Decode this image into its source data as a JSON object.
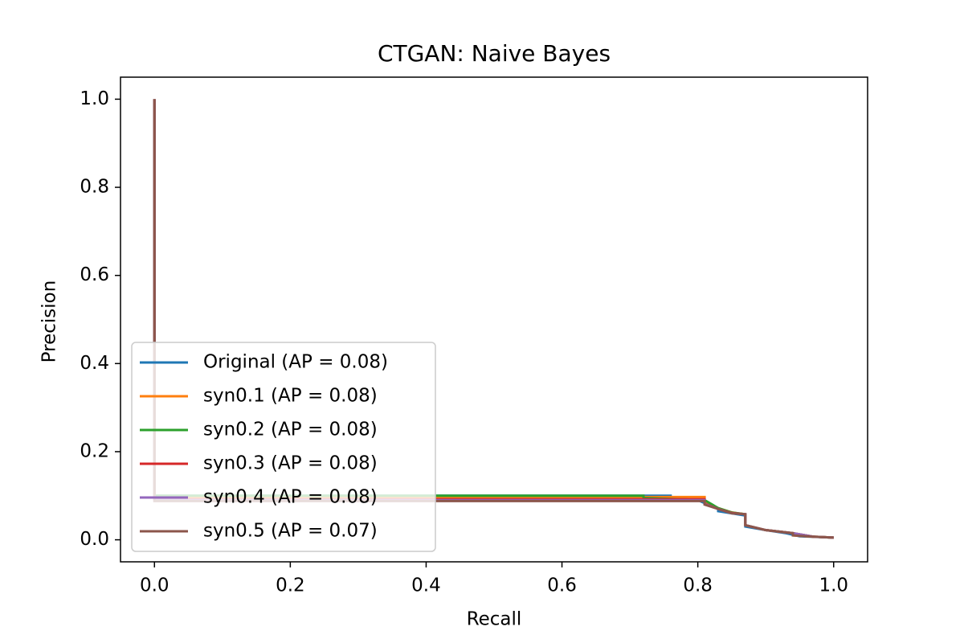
{
  "chart_data": {
    "type": "line",
    "title": "CTGAN: Naive Bayes",
    "xlabel": "Recall",
    "ylabel": "Precision",
    "xlim": [
      -0.05,
      1.05
    ],
    "ylim": [
      -0.05,
      1.05
    ],
    "xticks": [
      {
        "value": 0,
        "label": "0.0"
      },
      0.2,
      0.4,
      0.6,
      0.8,
      {
        "value": 1,
        "label": "1.0"
      }
    ],
    "yticks": [
      {
        "value": 0,
        "label": "0.0"
      },
      0.2,
      0.4,
      0.6,
      0.8,
      {
        "value": 1,
        "label": "1.0"
      }
    ],
    "legend": "lower left",
    "grid": false,
    "series": [
      {
        "name": "Original (AP = 0.08)",
        "color": "#1f77b4",
        "x": [
          0,
          0,
          0.76,
          0.76,
          0.8,
          0.83,
          0.83,
          0.87,
          0.87,
          0.9,
          0.93,
          0.95,
          1.0
        ],
        "values": [
          1,
          0.1,
          0.1,
          0.095,
          0.09,
          0.07,
          0.065,
          0.055,
          0.03,
          0.022,
          0.015,
          0.008,
          0.005
        ]
      },
      {
        "name": "syn0.1 (AP = 0.08)",
        "color": "#ff7f0e",
        "x": [
          0,
          0,
          0.81,
          0.81,
          0.83,
          0.85,
          0.87,
          0.87,
          0.9,
          0.94,
          0.94,
          0.97,
          1.0
        ],
        "values": [
          1,
          0.097,
          0.097,
          0.085,
          0.072,
          0.062,
          0.058,
          0.033,
          0.022,
          0.015,
          0.01,
          0.007,
          0.005
        ]
      },
      {
        "name": "syn0.2 (AP = 0.08)",
        "color": "#2ca02c",
        "x": [
          0,
          0,
          0.72,
          0.72,
          0.81,
          0.83,
          0.85,
          0.87,
          0.87,
          0.9,
          0.94,
          0.97,
          1.0
        ],
        "values": [
          1,
          0.1,
          0.1,
          0.095,
          0.09,
          0.072,
          0.062,
          0.058,
          0.033,
          0.022,
          0.015,
          0.007,
          0.005
        ]
      },
      {
        "name": "syn0.3 (AP = 0.08)",
        "color": "#d62728",
        "x": [
          0,
          0,
          0.81,
          0.81,
          0.83,
          0.85,
          0.87,
          0.87,
          0.9,
          0.94,
          0.97,
          1.0
        ],
        "values": [
          1,
          0.092,
          0.092,
          0.082,
          0.07,
          0.061,
          0.058,
          0.033,
          0.022,
          0.015,
          0.007,
          0.005
        ]
      },
      {
        "name": "syn0.4 (AP = 0.08)",
        "color": "#9467bd",
        "x": [
          0,
          0,
          0.81,
          0.81,
          0.83,
          0.85,
          0.87,
          0.87,
          0.9,
          0.94,
          0.97,
          1.0
        ],
        "values": [
          1,
          0.09,
          0.09,
          0.081,
          0.07,
          0.06,
          0.058,
          0.033,
          0.022,
          0.015,
          0.007,
          0.005
        ]
      },
      {
        "name": "syn0.5 (AP = 0.07)",
        "color": "#8c564b",
        "x": [
          0,
          0,
          0.81,
          0.81,
          0.83,
          0.85,
          0.87,
          0.87,
          0.9,
          0.94,
          0.94,
          0.97,
          1.0
        ],
        "values": [
          1,
          0.088,
          0.088,
          0.08,
          0.07,
          0.06,
          0.058,
          0.033,
          0.022,
          0.015,
          0.01,
          0.007,
          0.005
        ]
      }
    ]
  }
}
